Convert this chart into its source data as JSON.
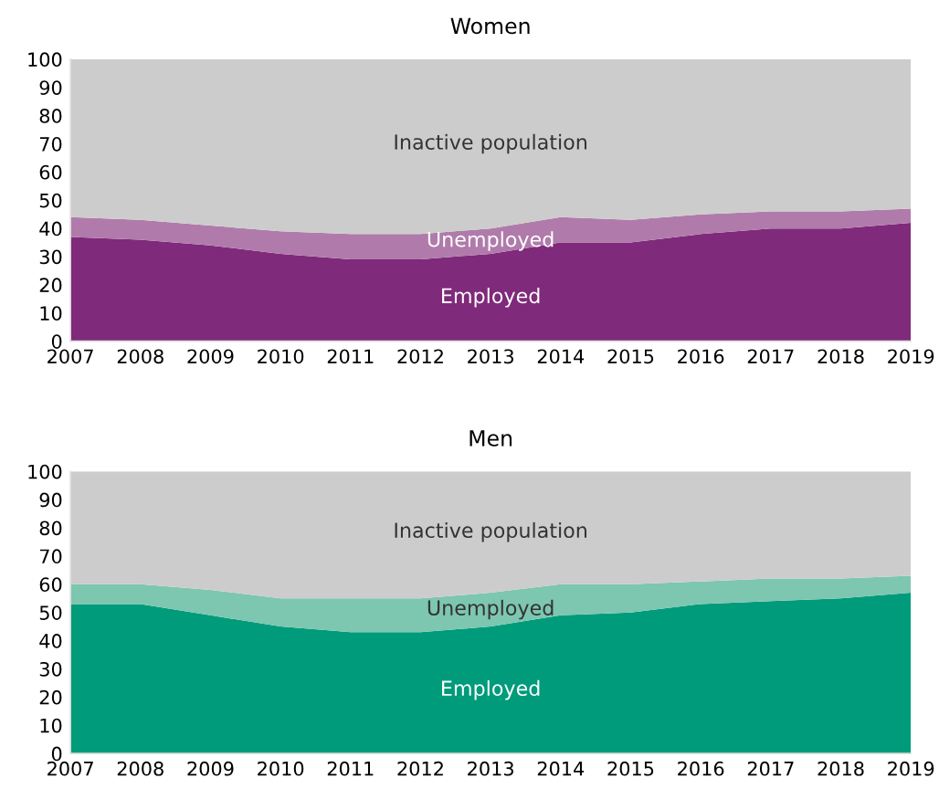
{
  "chart_data": [
    {
      "type": "area",
      "title": "Women",
      "stacked": true,
      "x": [
        2007,
        2008,
        2009,
        2010,
        2011,
        2012,
        2013,
        2014,
        2015,
        2016,
        2017,
        2018,
        2019
      ],
      "xlim": [
        2007,
        2019
      ],
      "xticks": [
        2007,
        2008,
        2009,
        2010,
        2011,
        2012,
        2013,
        2014,
        2015,
        2016,
        2017,
        2018,
        2019
      ],
      "ylim": [
        0,
        100
      ],
      "yticks": [
        0,
        10,
        20,
        30,
        40,
        50,
        60,
        70,
        80,
        90,
        100
      ],
      "grid": false,
      "legend": false,
      "series": [
        {
          "name": "Employed",
          "color": "#7f2a7a",
          "values": [
            37,
            36,
            34,
            31,
            29,
            29,
            31,
            35,
            35,
            38,
            40,
            40,
            42
          ]
        },
        {
          "name": "Unemployed",
          "color": "#b07bab",
          "values": [
            7,
            7,
            7,
            8,
            9,
            9,
            9,
            9,
            8,
            7,
            6,
            6,
            5
          ]
        },
        {
          "name": "Inactive population",
          "color": "#cccccc",
          "values": [
            56,
            57,
            59,
            61,
            62,
            62,
            60,
            56,
            57,
            55,
            54,
            54,
            53
          ]
        }
      ]
    },
    {
      "type": "area",
      "title": "Men",
      "stacked": true,
      "x": [
        2007,
        2008,
        2009,
        2010,
        2011,
        2012,
        2013,
        2014,
        2015,
        2016,
        2017,
        2018,
        2019
      ],
      "xlim": [
        2007,
        2019
      ],
      "xticks": [
        2007,
        2008,
        2009,
        2010,
        2011,
        2012,
        2013,
        2014,
        2015,
        2016,
        2017,
        2018,
        2019
      ],
      "ylim": [
        0,
        100
      ],
      "yticks": [
        0,
        10,
        20,
        30,
        40,
        50,
        60,
        70,
        80,
        90,
        100
      ],
      "grid": false,
      "legend": false,
      "series": [
        {
          "name": "Employed",
          "color": "#009b7b",
          "values": [
            53,
            53,
            49,
            45,
            43,
            43,
            45,
            49,
            50,
            53,
            54,
            55,
            57
          ]
        },
        {
          "name": "Unemployed",
          "color": "#7dc6b0",
          "values": [
            7,
            7,
            9,
            10,
            12,
            12,
            12,
            11,
            10,
            8,
            8,
            7,
            6
          ]
        },
        {
          "name": "Inactive population",
          "color": "#cccccc",
          "values": [
            40,
            40,
            42,
            45,
            45,
            45,
            43,
            40,
            40,
            39,
            38,
            38,
            37
          ]
        }
      ]
    }
  ]
}
